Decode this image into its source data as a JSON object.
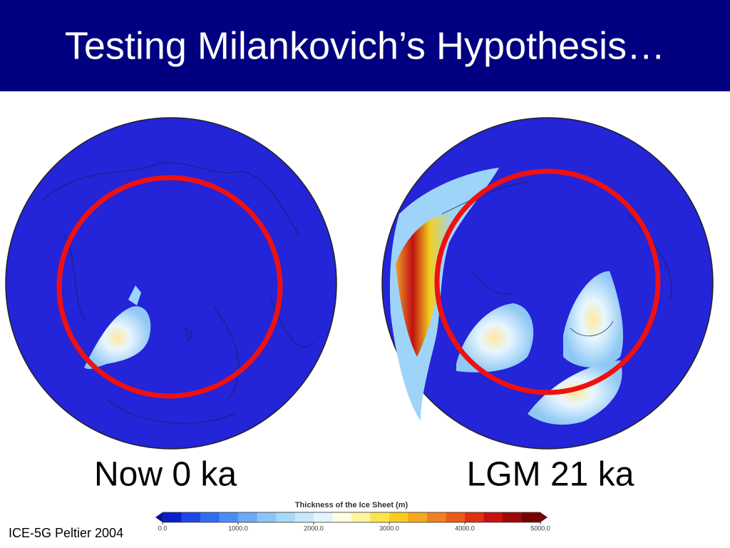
{
  "header": {
    "title": "Testing Milankovich’s Hypothesis…"
  },
  "panels": [
    {
      "label": "Now 0 ka"
    },
    {
      "label": "LGM 21 ka"
    }
  ],
  "colorbar": {
    "title": "Thickness of the Ice Sheet (m)",
    "ticks": [
      "0.0",
      "1000.0",
      "2000.0",
      "3000.0",
      "4000.0",
      "5000.0"
    ]
  },
  "citation": "ICE-5G Peltier 2004"
}
